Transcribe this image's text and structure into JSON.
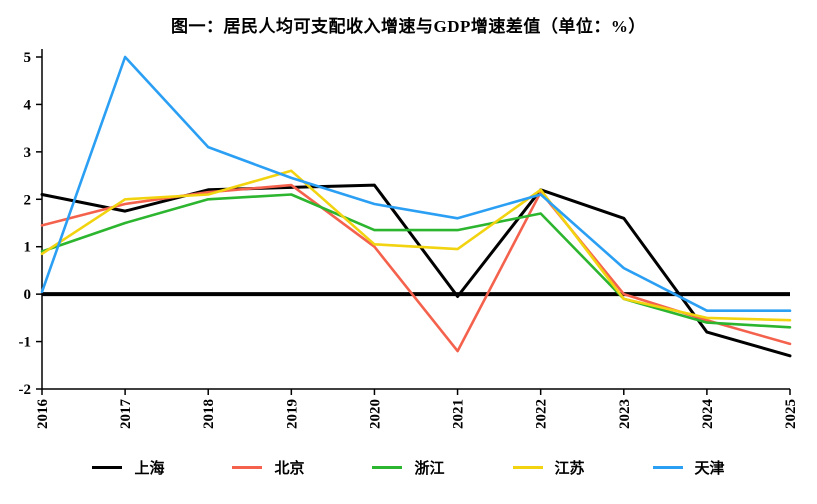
{
  "title": "图一：居民人均可支配收入增速与GDP增速差值（单位：%）",
  "chart_data": {
    "type": "line",
    "x": [
      "2016",
      "2017",
      "2018",
      "2019",
      "2020",
      "2021",
      "2022",
      "2023",
      "2024",
      "2025"
    ],
    "series": [
      {
        "name": "上海",
        "color": "#000000",
        "values": [
          2.1,
          1.75,
          2.2,
          2.25,
          2.3,
          -0.05,
          2.2,
          1.6,
          -0.8,
          -1.3
        ]
      },
      {
        "name": "北京",
        "color": "#F4624D",
        "values": [
          1.45,
          1.9,
          2.15,
          2.3,
          1.0,
          -1.2,
          2.15,
          0.0,
          -0.55,
          -1.05
        ]
      },
      {
        "name": "浙江",
        "color": "#2CB52E",
        "values": [
          0.9,
          1.5,
          2.0,
          2.1,
          1.35,
          1.35,
          1.7,
          -0.1,
          -0.6,
          -0.7
        ]
      },
      {
        "name": "江苏",
        "color": "#F2D30F",
        "values": [
          0.85,
          2.0,
          2.1,
          2.6,
          1.05,
          0.95,
          2.2,
          -0.1,
          -0.5,
          -0.55
        ]
      },
      {
        "name": "天津",
        "color": "#2B9FF3",
        "values": [
          0.05,
          5.0,
          3.1,
          2.45,
          1.9,
          1.6,
          2.1,
          0.55,
          -0.35,
          -0.35
        ]
      }
    ],
    "ylim": [
      -2,
      5
    ],
    "yticks": [
      5,
      4,
      3,
      2,
      1,
      0,
      -1,
      -2
    ],
    "grid": false,
    "zero_line": true,
    "legend_position": "bottom",
    "xlabel": "",
    "ylabel": ""
  }
}
